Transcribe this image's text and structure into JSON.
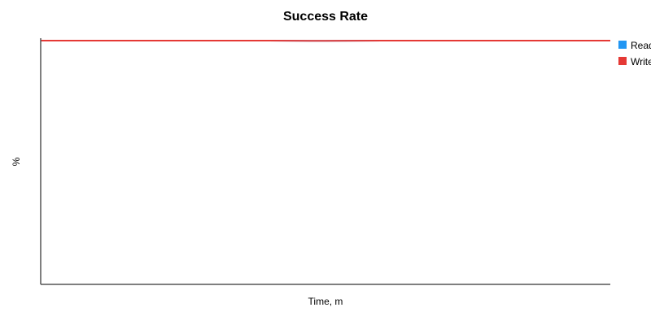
{
  "chart_data": {
    "type": "line",
    "title": "Success Rate",
    "xlabel": "Time, m",
    "ylabel": "%",
    "grid": false,
    "legend_position": "right",
    "x": [
      0,
      1,
      2,
      3,
      4,
      5,
      6,
      7,
      8,
      9,
      10
    ],
    "ylim": [
      0,
      100
    ],
    "series": [
      {
        "name": "Read",
        "color": "#2196F3",
        "values": [
          100,
          100,
          100,
          100,
          100,
          99.9,
          100,
          100,
          100,
          100,
          100
        ]
      },
      {
        "name": "Write",
        "color": "#E53935",
        "values": [
          100,
          100,
          100,
          100,
          100,
          99.9,
          100,
          100,
          100,
          100,
          100
        ]
      }
    ]
  }
}
